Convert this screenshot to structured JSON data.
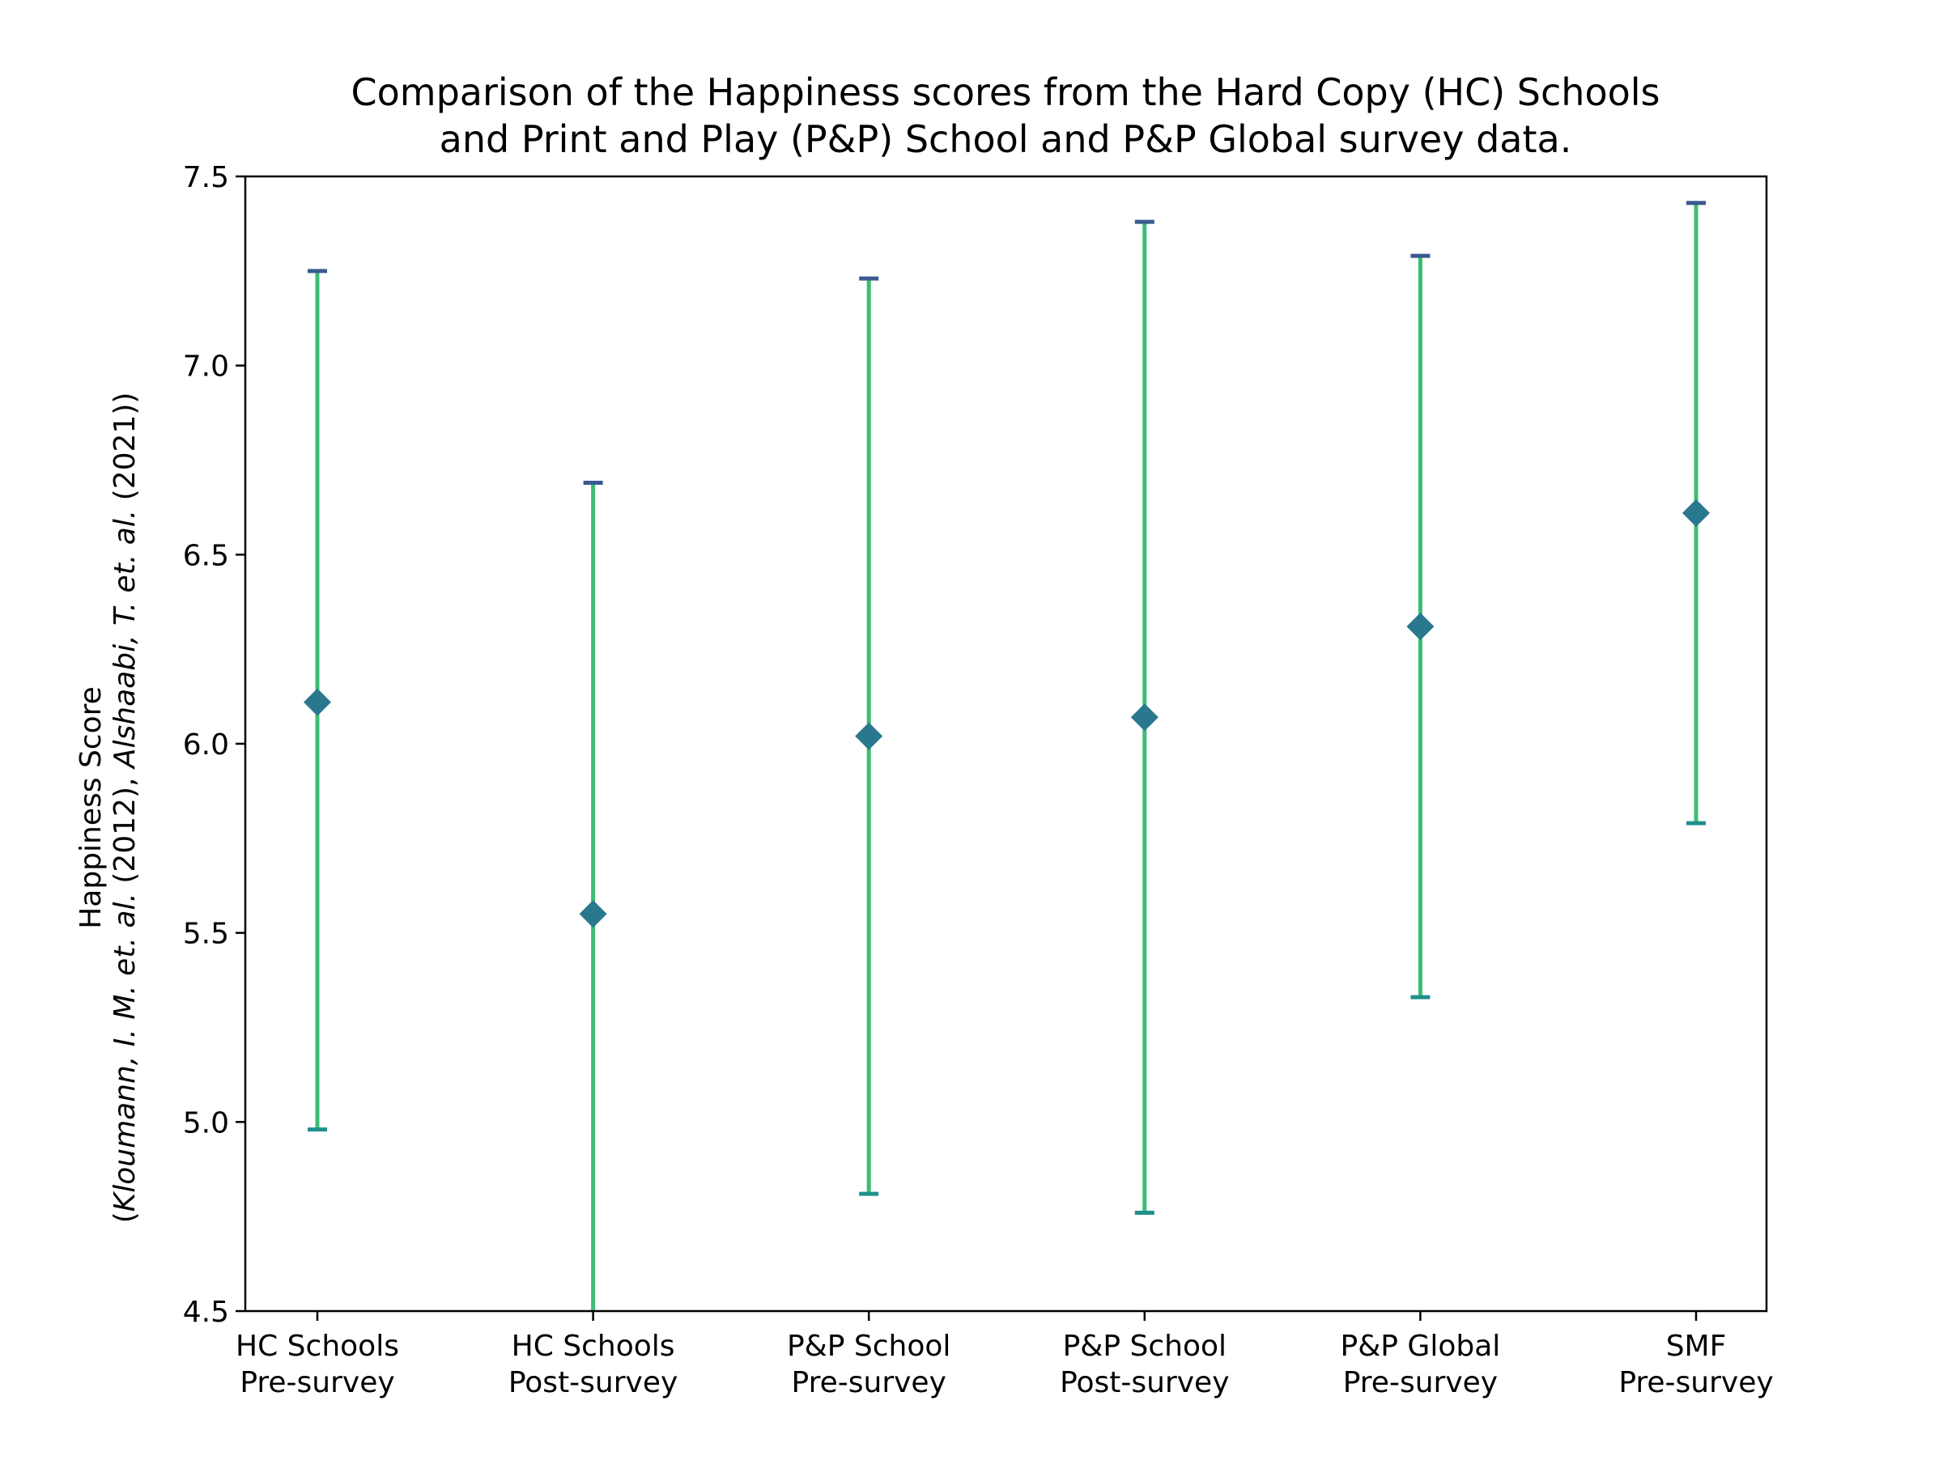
{
  "chart_data": {
    "type": "errorbar",
    "title_lines": [
      "Comparison of the Happiness scores from the Hard Copy (HC) Schools",
      "and Print and Play (P&P) School and P&P Global survey data."
    ],
    "ylabel_line1": "Happiness Score",
    "ylabel_line2": {
      "open": "(",
      "author1": "Kloumann, I. M. et. al.",
      "year1": " (2012), ",
      "author2": "Alshaabi, T. et. al.",
      "year2": " (2021))"
    },
    "xlabel": "",
    "ylim": [
      4.5,
      7.5
    ],
    "yticks": [
      "4.5",
      "5.0",
      "5.5",
      "6.0",
      "6.5",
      "7.0",
      "7.5"
    ],
    "grid": false,
    "categories": [
      [
        "HC Schools",
        "Pre-survey"
      ],
      [
        "HC Schools",
        "Post-survey"
      ],
      [
        "P&P School",
        "Pre-survey"
      ],
      [
        "P&P School",
        "Post-survey"
      ],
      [
        "P&P Global",
        "Pre-survey"
      ],
      [
        "SMF",
        "Pre-survey"
      ]
    ],
    "means": [
      6.11,
      5.55,
      6.02,
      6.07,
      6.31,
      6.61
    ],
    "lower": [
      4.98,
      4.33,
      4.81,
      4.76,
      5.33,
      5.79
    ],
    "upper": [
      7.25,
      6.69,
      7.23,
      7.38,
      7.29,
      7.43
    ],
    "colors": {
      "marker": "#2a788e",
      "errorbar": "#3dbc74",
      "cap_top": "#3b5a8f",
      "cap_bottom": "#21908d"
    }
  }
}
